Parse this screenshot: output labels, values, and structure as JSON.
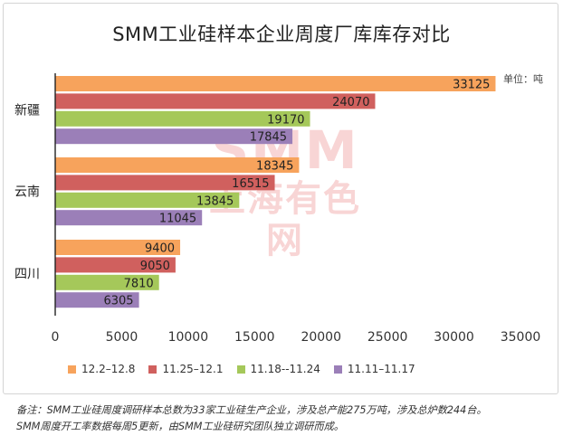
{
  "chart_data": {
    "type": "bar",
    "orientation": "horizontal",
    "title": "SMM工业硅样本企业周度厂库库存对比",
    "unit": "单位：吨",
    "categories": [
      "新疆",
      "云南",
      "四川"
    ],
    "series": [
      {
        "name": "12.2–12.8",
        "color": "#f7a35c",
        "values": [
          33125,
          18345,
          9400
        ]
      },
      {
        "name": "11.25–12.1",
        "color": "#d0605e",
        "values": [
          24070,
          16515,
          9050
        ]
      },
      {
        "name": "11.18--11.24",
        "color": "#a5c85a",
        "values": [
          19170,
          13845,
          7810
        ]
      },
      {
        "name": "11.11–11.17",
        "color": "#9b7fb8",
        "values": [
          17845,
          11045,
          6305
        ]
      }
    ],
    "xlim": [
      0,
      35000
    ],
    "xticks": [
      "0",
      "5000",
      "10000",
      "15000",
      "20000",
      "25000",
      "30000",
      "35000"
    ],
    "grid": false,
    "legend_position": "bottom"
  },
  "watermark": {
    "line1": "SMM",
    "line2": "上海有色网"
  },
  "footnote": {
    "line1": "备注：SMM工业硅周度调研样本总数为33家工业硅生产企业，涉及总产能275万吨，涉及总炉数244台。",
    "line2": "SMM周度开工率数据每周5更新，由SMM工业硅研究团队独立调研而成。"
  }
}
